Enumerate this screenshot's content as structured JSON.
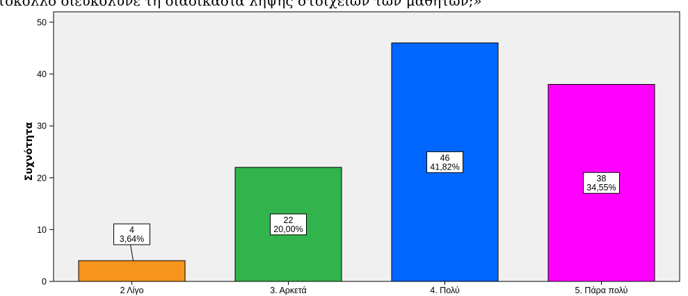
{
  "chart_data": {
    "type": "bar",
    "title": "τοκόλλο διευκόλυνε τη διαδικασία λήψης στοιχείων των μαθητών;»",
    "ylabel": "Συχνότητα",
    "xlabel": "",
    "categories": [
      "2 Λίγο",
      "3. Αρκετά",
      "4. Πολύ",
      "5. Πάρα πολύ"
    ],
    "values": [
      4,
      22,
      46,
      38
    ],
    "percent_labels": [
      "3,64%",
      "20,00%",
      "41,82%",
      "34,55%"
    ],
    "ylim": [
      0,
      52
    ],
    "yticks": [
      0,
      10,
      20,
      30,
      40,
      50
    ],
    "grid": false,
    "bar_colors": [
      "#f7941d",
      "#31b44b",
      "#0066ff",
      "#ff00ff"
    ],
    "plot_background": "#f0f0f0",
    "outline_color": "#000000"
  }
}
